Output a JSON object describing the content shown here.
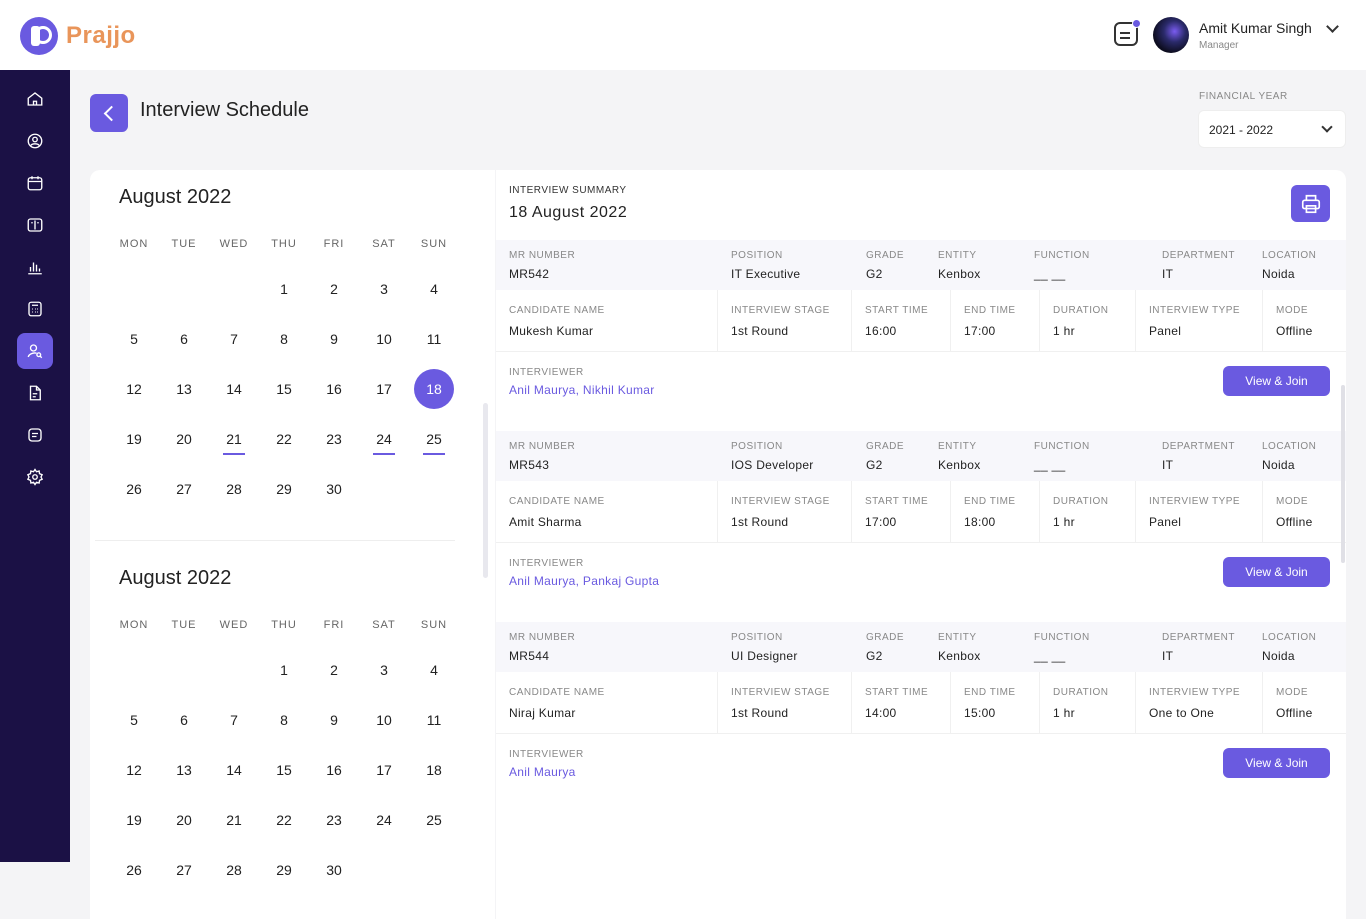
{
  "header": {
    "brand": "Prajjo",
    "user_name": "Amit Kumar Singh",
    "user_role": "Manager"
  },
  "sidebar": {
    "icons": [
      "home-icon",
      "user-circle-icon",
      "calendar-icon",
      "book-icon",
      "bar-chart-icon",
      "calculator-icon",
      "user-search-icon",
      "document-icon",
      "list-icon",
      "gear-icon"
    ],
    "active_index": 6
  },
  "page": {
    "title": "Interview Schedule",
    "financial_year_label": "FINANCIAL YEAR",
    "financial_year_value": "2021 - 2022"
  },
  "calendars": [
    {
      "month": "August 2022",
      "weekdays": [
        "MON",
        "TUE",
        "WED",
        "THU",
        "FRI",
        "SAT",
        "SUN"
      ],
      "leading_blanks": 3,
      "days": 30,
      "selected": 18,
      "marked": [
        21,
        24,
        25
      ]
    },
    {
      "month": "August 2022",
      "weekdays": [
        "MON",
        "TUE",
        "WED",
        "THU",
        "FRI",
        "SAT",
        "SUN"
      ],
      "leading_blanks": 3,
      "days": 30,
      "selected": null,
      "marked": []
    }
  ],
  "summary": {
    "label": "INTERVIEW SUMMARY",
    "date": "18 August 2022",
    "labels": {
      "mr_number": "MR NUMBER",
      "position": "POSITION",
      "grade": "GRADE",
      "entity": "ENTITY",
      "function": "FUNCTION",
      "department": "DEPARTMENT",
      "location": "LOCATION",
      "candidate_name": "CANDIDATE NAME",
      "interview_stage": "INTERVIEW STAGE",
      "start_time": "START TIME",
      "end_time": "END TIME",
      "duration": "DURATION",
      "interview_type": "INTERVIEW TYPE",
      "mode": "MODE",
      "interviewer": "INTERVIEWER"
    },
    "join_label": "View & Join",
    "interviews": [
      {
        "mr_number": "MR542",
        "position": "IT Executive",
        "grade": "G2",
        "entity": "Kenbox",
        "function": "__ __",
        "department": "IT",
        "location": "Noida",
        "candidate_name": "Mukesh Kumar",
        "interview_stage": "1st Round",
        "start_time": "16:00",
        "end_time": "17:00",
        "duration": "1 hr",
        "interview_type": "Panel",
        "mode": "Offline",
        "interviewer": "Anil Maurya, Nikhil Kumar"
      },
      {
        "mr_number": "MR543",
        "position": "IOS Developer",
        "grade": "G2",
        "entity": "Kenbox",
        "function": "__ __",
        "department": "IT",
        "location": "Noida",
        "candidate_name": "Amit Sharma",
        "interview_stage": "1st Round",
        "start_time": "17:00",
        "end_time": "18:00",
        "duration": "1 hr",
        "interview_type": "Panel",
        "mode": "Offline",
        "interviewer": "Anil Maurya, Pankaj Gupta"
      },
      {
        "mr_number": "MR544",
        "position": "UI Designer",
        "grade": "G2",
        "entity": "Kenbox",
        "function": "__ __",
        "department": "IT",
        "location": "Noida",
        "candidate_name": "Niraj Kumar",
        "interview_stage": "1st Round",
        "start_time": "14:00",
        "end_time": "15:00",
        "duration": "1 hr",
        "interview_type": "One to One",
        "mode": "Offline",
        "interviewer": "Anil Maurya"
      }
    ]
  }
}
